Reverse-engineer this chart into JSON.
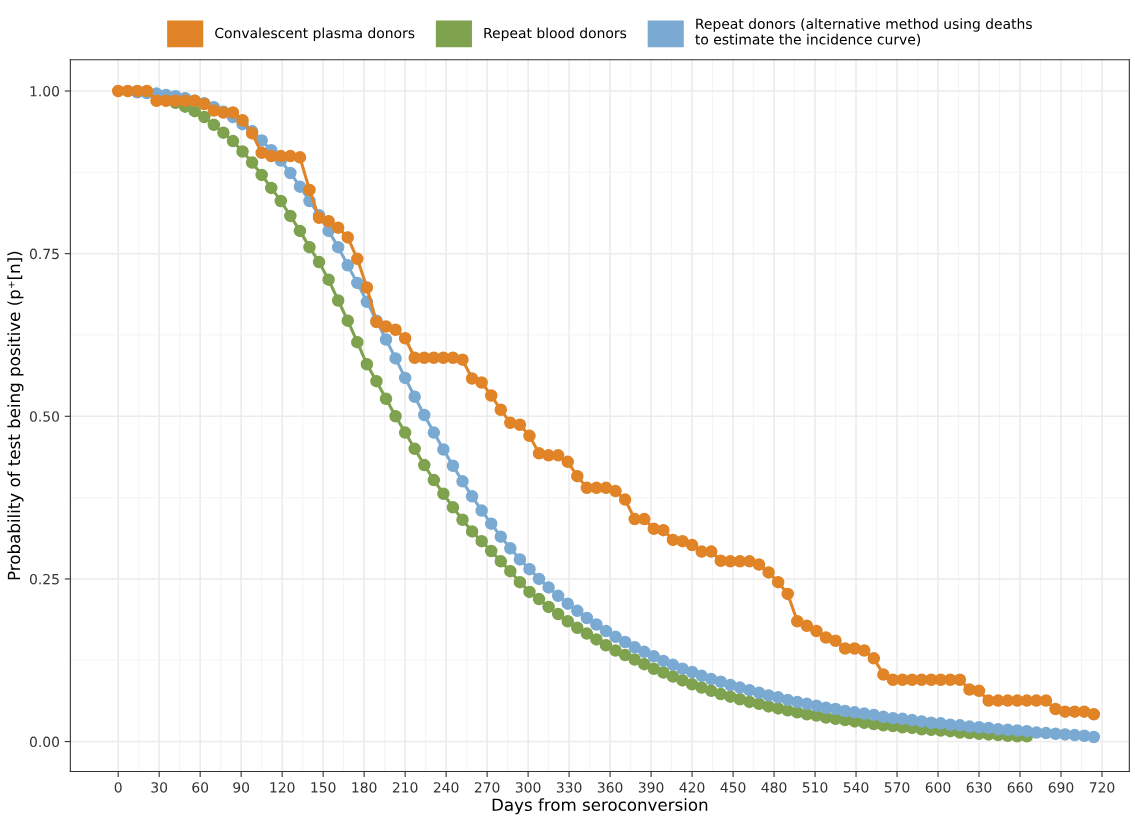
{
  "chart_data": {
    "type": "line",
    "xlabel": "Days from seroconversion",
    "ylabel": "Probability of test being positive (p⁺[n])",
    "x": [
      0,
      7,
      14,
      21,
      28,
      35,
      42,
      49,
      56,
      63,
      70,
      77,
      84,
      91,
      98,
      105,
      112,
      119,
      126,
      133,
      140,
      147,
      154,
      161,
      168,
      175,
      182,
      189,
      196,
      203,
      210,
      217,
      224,
      231,
      238,
      245,
      252,
      259,
      266,
      273,
      280,
      287,
      294,
      301,
      308,
      315,
      322,
      329,
      336,
      343,
      350,
      357,
      364,
      371,
      378,
      385,
      392,
      399,
      406,
      413,
      420,
      427,
      434,
      441,
      448,
      455,
      462,
      469,
      476,
      483,
      490,
      497,
      504,
      511,
      518,
      525,
      532,
      539,
      546,
      553,
      560,
      567,
      574,
      581,
      588,
      595,
      602,
      609,
      616,
      623,
      630,
      637,
      644,
      651,
      658,
      665,
      672,
      679,
      686,
      693,
      700,
      707,
      714
    ],
    "series": [
      {
        "name": "Convalescent plasma donors",
        "color": "#e08427",
        "values": [
          1.0,
          1.0,
          1.0,
          1.0,
          0.985,
          0.985,
          0.985,
          0.985,
          0.985,
          0.98,
          0.97,
          0.967,
          0.967,
          0.955,
          0.935,
          0.905,
          0.9,
          0.9,
          0.9,
          0.898,
          0.848,
          0.805,
          0.8,
          0.79,
          0.775,
          0.742,
          0.698,
          0.645,
          0.638,
          0.633,
          0.62,
          0.59,
          0.59,
          0.59,
          0.59,
          0.59,
          0.587,
          0.558,
          0.552,
          0.532,
          0.51,
          0.49,
          0.487,
          0.47,
          0.443,
          0.44,
          0.44,
          0.43,
          0.408,
          0.39,
          0.39,
          0.39,
          0.385,
          0.372,
          0.342,
          0.342,
          0.327,
          0.325,
          0.31,
          0.308,
          0.302,
          0.292,
          0.292,
          0.278,
          0.277,
          0.277,
          0.277,
          0.272,
          0.26,
          0.245,
          0.227,
          0.185,
          0.178,
          0.17,
          0.16,
          0.155,
          0.143,
          0.143,
          0.14,
          0.128,
          0.103,
          0.095,
          0.095,
          0.095,
          0.095,
          0.095,
          0.095,
          0.095,
          0.095,
          0.08,
          0.078,
          0.063,
          0.063,
          0.063,
          0.063,
          0.063,
          0.063,
          0.063,
          0.05,
          0.046,
          0.046,
          0.046,
          0.042
        ]
      },
      {
        "name": "Repeat blood donors",
        "color": "#7ea24e",
        "values": [
          null,
          null,
          null,
          null,
          null,
          null,
          0.982,
          0.976,
          0.969,
          0.96,
          0.948,
          0.936,
          0.923,
          0.907,
          0.89,
          0.871,
          0.851,
          0.831,
          0.808,
          0.785,
          0.76,
          0.737,
          0.71,
          0.678,
          0.647,
          0.614,
          0.58,
          0.554,
          0.527,
          0.5,
          0.475,
          0.45,
          0.425,
          0.402,
          0.381,
          0.36,
          0.341,
          0.323,
          0.308,
          0.293,
          0.277,
          0.262,
          0.245,
          0.23,
          0.219,
          0.207,
          0.196,
          0.185,
          0.175,
          0.166,
          0.157,
          0.148,
          0.14,
          0.133,
          0.126,
          0.119,
          0.112,
          0.106,
          0.1,
          0.094,
          0.088,
          0.083,
          0.078,
          0.073,
          0.069,
          0.065,
          0.061,
          0.058,
          0.054,
          0.051,
          0.048,
          0.045,
          0.042,
          0.04,
          0.037,
          0.035,
          0.033,
          0.031,
          0.029,
          0.027,
          0.025,
          0.024,
          0.022,
          0.021,
          0.019,
          0.018,
          0.017,
          0.016,
          0.014,
          0.013,
          0.012,
          0.011,
          0.01,
          0.009,
          0.008,
          0.008,
          null,
          null,
          null,
          null,
          null,
          null,
          null
        ]
      },
      {
        "name": "Repeat donors (alternative method using deaths\nto estimate the incidence curve)",
        "color": "#7aaad2",
        "values": [
          null,
          null,
          0.998,
          0.997,
          0.996,
          0.994,
          0.992,
          0.989,
          0.985,
          0.981,
          0.975,
          0.968,
          0.96,
          0.949,
          0.938,
          0.924,
          0.909,
          0.893,
          0.874,
          0.853,
          0.831,
          0.809,
          0.785,
          0.76,
          0.732,
          0.705,
          0.676,
          0.647,
          0.618,
          0.589,
          0.559,
          0.53,
          0.502,
          0.475,
          0.449,
          0.424,
          0.4,
          0.377,
          0.355,
          0.335,
          0.315,
          0.297,
          0.28,
          0.265,
          0.25,
          0.237,
          0.224,
          0.212,
          0.201,
          0.19,
          0.18,
          0.17,
          0.161,
          0.153,
          0.145,
          0.138,
          0.131,
          0.124,
          0.118,
          0.112,
          0.107,
          0.101,
          0.096,
          0.092,
          0.087,
          0.083,
          0.079,
          0.075,
          0.071,
          0.068,
          0.064,
          0.061,
          0.058,
          0.055,
          0.052,
          0.05,
          0.047,
          0.045,
          0.043,
          0.041,
          0.038,
          0.036,
          0.035,
          0.033,
          0.031,
          0.029,
          0.028,
          0.026,
          0.025,
          0.023,
          0.022,
          0.021,
          0.019,
          0.018,
          0.017,
          0.016,
          0.014,
          0.013,
          0.012,
          0.011,
          0.01,
          0.009,
          0.007
        ]
      }
    ],
    "xlim": [
      -35,
      740
    ],
    "ylim": [
      -0.046,
      1.048
    ],
    "xticks": [
      0,
      30,
      60,
      90,
      120,
      150,
      180,
      210,
      240,
      270,
      300,
      330,
      360,
      390,
      420,
      450,
      480,
      510,
      540,
      570,
      600,
      630,
      660,
      690,
      720
    ],
    "yticks": [
      {
        "value": 0,
        "label": "0.00"
      },
      {
        "value": 0.25,
        "label": "0.25"
      },
      {
        "value": 0.5,
        "label": "0.50"
      },
      {
        "value": 0.75,
        "label": "0.75"
      },
      {
        "value": 1,
        "label": "1.00"
      }
    ],
    "grid": true,
    "legend": "top",
    "marker": "circle",
    "line_style": "solid"
  }
}
